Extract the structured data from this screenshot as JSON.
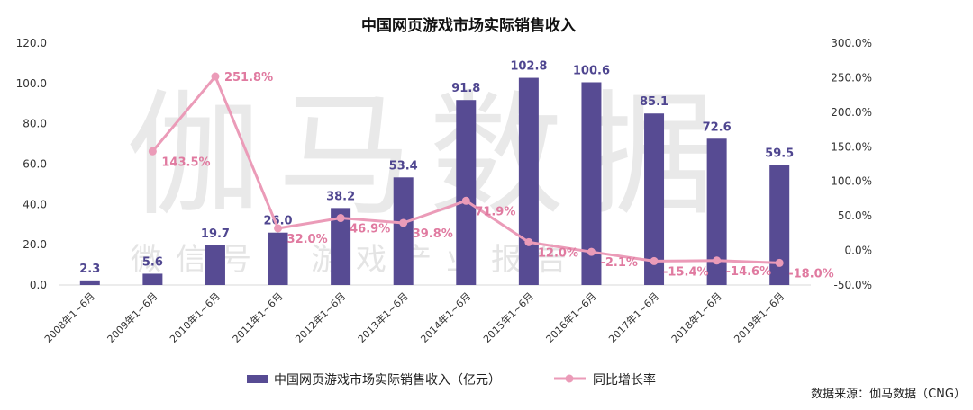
{
  "chart_data": {
    "type": "bar",
    "title": "中国网页游戏市场实际销售收入",
    "categories": [
      "2008年1~6月",
      "2009年1~6月",
      "2010年1~6月",
      "2011年1~6月",
      "2012年1~6月",
      "2013年1~6月",
      "2014年1~6月",
      "2015年1~6月",
      "2016年1~6月",
      "2017年1~6月",
      "2018年1~6月",
      "2019年1~6月"
    ],
    "series": [
      {
        "name": "中国网页游戏市场实际销售收入（亿元）",
        "type": "bar",
        "axis": "left",
        "color": "#574b93",
        "values": [
          2.3,
          5.6,
          19.7,
          26.0,
          38.2,
          53.4,
          91.8,
          102.8,
          100.6,
          85.1,
          72.6,
          59.5
        ],
        "labels": [
          "2.3",
          "5.6",
          "19.7",
          "26.0",
          "38.2",
          "53.4",
          "91.8",
          "102.8",
          "100.6",
          "85.1",
          "72.6",
          "59.5"
        ]
      },
      {
        "name": "同比增长率",
        "type": "line",
        "axis": "right",
        "color": "#eb9bb8",
        "values": [
          null,
          143.5,
          251.8,
          32.0,
          46.9,
          39.8,
          71.9,
          12.0,
          -2.1,
          -15.4,
          -14.6,
          -18.0
        ],
        "labels": [
          "",
          "143.5%",
          "251.8%",
          "32.0%",
          "46.9%",
          "39.8%",
          "71.9%",
          "12.0%",
          "-2.1%",
          "-15.4%",
          "-14.6%",
          "-18.0%"
        ]
      }
    ],
    "y_left": {
      "lim": [
        0,
        120
      ],
      "ticks": [
        "0.0",
        "20.0",
        "40.0",
        "60.0",
        "80.0",
        "100.0",
        "120.0"
      ]
    },
    "y_right": {
      "lim": [
        -50,
        300
      ],
      "ticks": [
        "-50.0%",
        "0.0%",
        "50.0%",
        "100.0%",
        "150.0%",
        "200.0%",
        "250.0%",
        "300.0%"
      ]
    },
    "legend_position": "bottom",
    "grid": false
  },
  "watermark": {
    "main": "伽马数据",
    "sub": "微信号：游戏产业报告"
  },
  "source": "数据来源：伽马数据（CNG）"
}
